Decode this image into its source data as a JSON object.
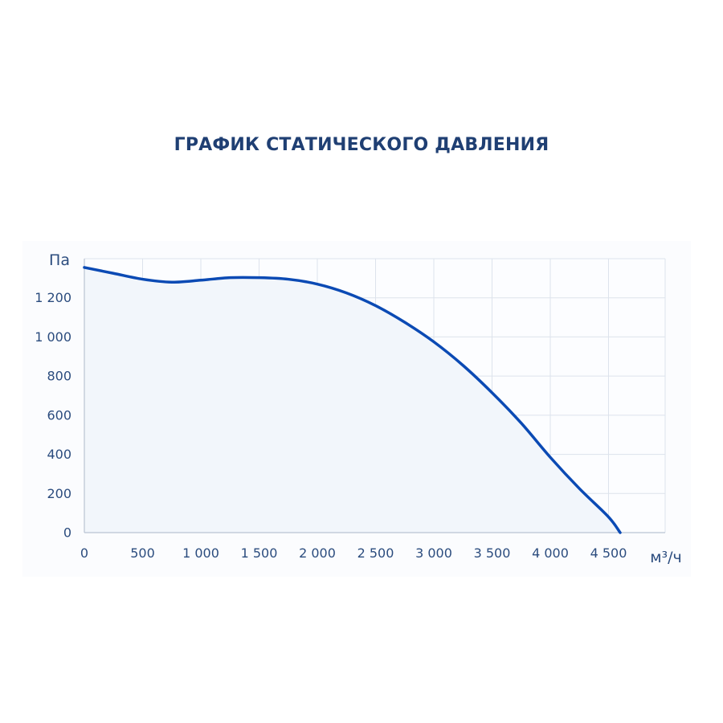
{
  "chart_data": {
    "type": "area",
    "title": "ГРАФИК СТАТИЧЕСКОГО ДАВЛЕНИЯ",
    "xlabel": "м³/ч",
    "ylabel": "Па",
    "xlim": [
      0,
      5000
    ],
    "ylim": [
      0,
      1400
    ],
    "grid": true,
    "x_ticks": [
      {
        "value": 0,
        "label": "0"
      },
      {
        "value": 500,
        "label": "500"
      },
      {
        "value": 1000,
        "label": "1 000"
      },
      {
        "value": 1500,
        "label": "1 500"
      },
      {
        "value": 2000,
        "label": "2 000"
      },
      {
        "value": 2500,
        "label": "2 500"
      },
      {
        "value": 3000,
        "label": "3 000"
      },
      {
        "value": 3500,
        "label": "3 500"
      },
      {
        "value": 4000,
        "label": "4 000"
      },
      {
        "value": 4500,
        "label": "4 500"
      }
    ],
    "y_ticks": [
      {
        "value": 0,
        "label": "0"
      },
      {
        "value": 200,
        "label": "200"
      },
      {
        "value": 400,
        "label": "400"
      },
      {
        "value": 600,
        "label": "600"
      },
      {
        "value": 800,
        "label": "800"
      },
      {
        "value": 1000,
        "label": "1 000"
      },
      {
        "value": 1200,
        "label": "1 200"
      }
    ],
    "series": [
      {
        "color": "#0b4ab4",
        "fill": "#f2f6fb",
        "x": [
          0,
          250,
          500,
          750,
          1000,
          1250,
          1500,
          1750,
          2000,
          2250,
          2500,
          2750,
          3000,
          3250,
          3500,
          3750,
          4000,
          4250,
          4500,
          4600
        ],
        "y": [
          1355,
          1325,
          1295,
          1280,
          1290,
          1303,
          1303,
          1295,
          1270,
          1225,
          1160,
          1075,
          975,
          855,
          715,
          560,
          385,
          225,
          80,
          0
        ]
      }
    ]
  }
}
